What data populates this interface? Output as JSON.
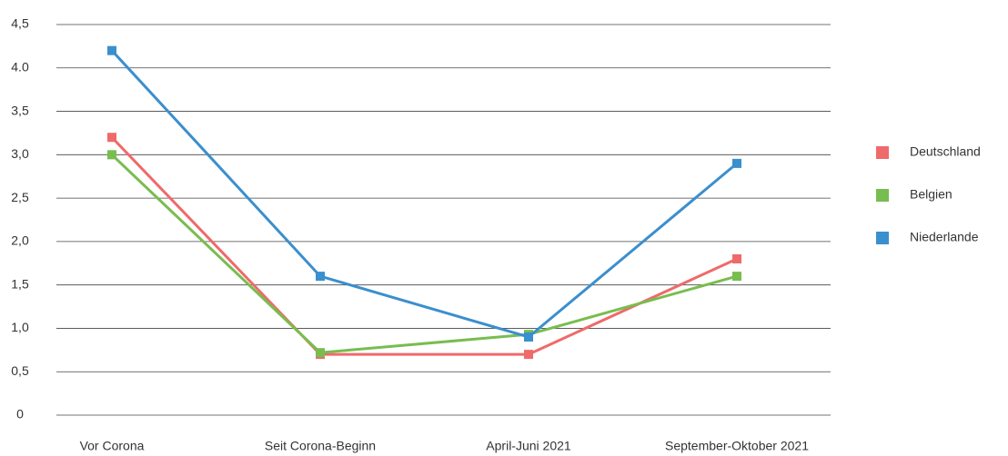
{
  "chart_data": {
    "type": "line",
    "categories": [
      "Vor Corona",
      "Seit Corona-Beginn",
      "April-Juni 2021",
      "September-Oktober 2021"
    ],
    "series": [
      {
        "name": "Deutschland",
        "color": "#ef6a6a",
        "values": [
          3.2,
          0.7,
          0.7,
          1.8
        ]
      },
      {
        "name": "Belgien",
        "color": "#78bd4f",
        "values": [
          3.0,
          0.72,
          0.93,
          1.6
        ]
      },
      {
        "name": "Niederlande",
        "color": "#3a8fce",
        "values": [
          4.2,
          1.6,
          0.9,
          2.9
        ]
      }
    ],
    "ylim": [
      0,
      4.5
    ],
    "yticks": [
      0,
      {
        "value": 0.5,
        "label": "0,5"
      },
      {
        "value": 1,
        "label": "1,0"
      },
      {
        "value": 1.5,
        "label": "1,5"
      },
      {
        "value": 2,
        "label": "2,0"
      },
      {
        "value": 2.5,
        "label": "2,5"
      },
      {
        "value": 3,
        "label": "3,0"
      },
      {
        "value": 3.5,
        "label": "3,5"
      },
      {
        "value": 4,
        "label": "4.0"
      },
      {
        "value": 4.5,
        "label": "4,5"
      }
    ],
    "grid": true,
    "legend": "right"
  }
}
